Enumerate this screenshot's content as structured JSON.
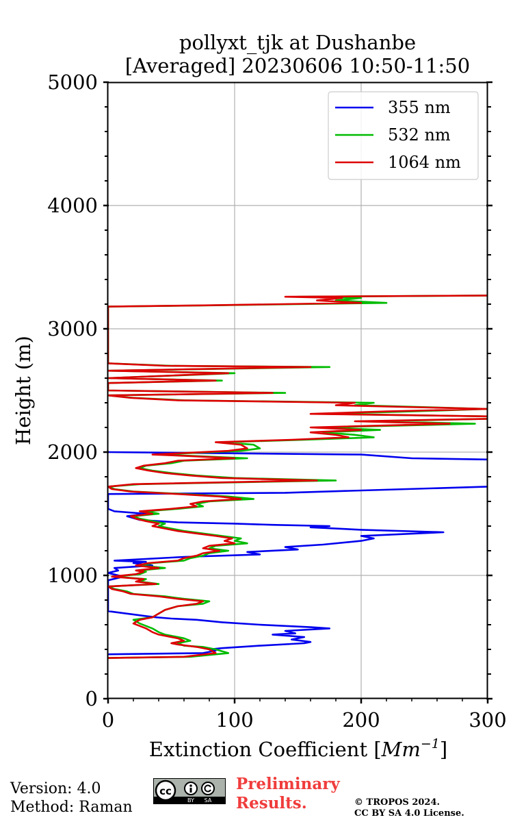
{
  "chart_data": {
    "type": "line",
    "title": "pollyxt_tjk at Dushanbe",
    "subtitle": "[Averaged] 20230606 10:50-11:50",
    "xlabel": "Extinction Coefficient [",
    "xlabel_unit": "Mm",
    "xlabel_exp": "−1",
    "xlabel_end": "]",
    "ylabel": "Height (m)",
    "xlim": [
      0,
      300
    ],
    "ylim": [
      0,
      5000
    ],
    "xticks": [
      0,
      100,
      200,
      300
    ],
    "yticks": [
      0,
      1000,
      2000,
      3000,
      4000,
      5000
    ],
    "grid": true,
    "legend_position": "top-right",
    "series": [
      {
        "name": "355 nm",
        "color": "#0000ee",
        "points": [
          [
            0,
            360
          ],
          [
            75,
            370
          ],
          [
            80,
            380
          ],
          [
            85,
            390
          ],
          [
            80,
            400
          ],
          [
            90,
            410
          ],
          [
            120,
            430
          ],
          [
            155,
            450
          ],
          [
            160,
            460
          ],
          [
            145,
            480
          ],
          [
            155,
            500
          ],
          [
            130,
            520
          ],
          [
            148,
            530
          ],
          [
            140,
            550
          ],
          [
            175,
            570
          ],
          [
            160,
            580
          ],
          [
            120,
            600
          ],
          [
            90,
            620
          ],
          [
            70,
            640
          ],
          [
            50,
            650
          ],
          [
            38,
            660
          ],
          [
            30,
            670
          ],
          [
            15,
            690
          ],
          [
            0,
            710
          ],
          [
            0,
            960
          ],
          [
            12,
            990
          ],
          [
            0,
            1020
          ],
          [
            8,
            1040
          ],
          [
            5,
            1060
          ],
          [
            35,
            1080
          ],
          [
            20,
            1100
          ],
          [
            30,
            1110
          ],
          [
            5,
            1120
          ],
          [
            60,
            1150
          ],
          [
            120,
            1170
          ],
          [
            110,
            1190
          ],
          [
            150,
            1210
          ],
          [
            140,
            1230
          ],
          [
            170,
            1250
          ],
          [
            200,
            1280
          ],
          [
            210,
            1300
          ],
          [
            200,
            1320
          ],
          [
            265,
            1350
          ],
          [
            200,
            1370
          ],
          [
            160,
            1390
          ],
          [
            175,
            1400
          ],
          [
            130,
            1410
          ],
          [
            100,
            1420
          ],
          [
            55,
            1430
          ],
          [
            40,
            1440
          ],
          [
            25,
            1450
          ],
          [
            15,
            1480
          ],
          [
            30,
            1500
          ],
          [
            5,
            1520
          ],
          [
            0,
            1540
          ],
          [
            0,
            1660
          ],
          [
            140,
            1670
          ],
          [
            300,
            1720
          ],
          [
            300,
            1940
          ],
          [
            240,
            1950
          ],
          [
            200,
            1980
          ],
          [
            0,
            2000
          ]
        ]
      },
      {
        "name": "532 nm",
        "color": "#00bb00",
        "points": [
          [
            0,
            330
          ],
          [
            65,
            340
          ],
          [
            95,
            370
          ],
          [
            85,
            400
          ],
          [
            75,
            420
          ],
          [
            60,
            430
          ],
          [
            55,
            450
          ],
          [
            65,
            470
          ],
          [
            60,
            490
          ],
          [
            45,
            520
          ],
          [
            40,
            540
          ],
          [
            35,
            570
          ],
          [
            30,
            590
          ],
          [
            25,
            610
          ],
          [
            20,
            640
          ],
          [
            35,
            660
          ],
          [
            40,
            690
          ],
          [
            45,
            720
          ],
          [
            55,
            750
          ],
          [
            75,
            770
          ],
          [
            80,
            790
          ],
          [
            60,
            810
          ],
          [
            45,
            830
          ],
          [
            20,
            850
          ],
          [
            15,
            870
          ],
          [
            5,
            890
          ],
          [
            0,
            910
          ],
          [
            40,
            930
          ],
          [
            25,
            950
          ],
          [
            30,
            970
          ],
          [
            5,
            990
          ],
          [
            25,
            1010
          ],
          [
            30,
            1030
          ],
          [
            25,
            1040
          ],
          [
            45,
            1060
          ],
          [
            25,
            1080
          ],
          [
            35,
            1100
          ],
          [
            60,
            1120
          ],
          [
            65,
            1140
          ],
          [
            75,
            1160
          ],
          [
            80,
            1180
          ],
          [
            95,
            1200
          ],
          [
            80,
            1220
          ],
          [
            85,
            1240
          ],
          [
            110,
            1260
          ],
          [
            100,
            1280
          ],
          [
            105,
            1300
          ],
          [
            90,
            1320
          ],
          [
            75,
            1340
          ],
          [
            60,
            1360
          ],
          [
            50,
            1380
          ],
          [
            40,
            1400
          ],
          [
            45,
            1420
          ],
          [
            35,
            1440
          ],
          [
            25,
            1460
          ],
          [
            20,
            1480
          ],
          [
            40,
            1500
          ],
          [
            30,
            1520
          ],
          [
            55,
            1540
          ],
          [
            75,
            1560
          ],
          [
            70,
            1580
          ],
          [
            80,
            1600
          ],
          [
            115,
            1620
          ],
          [
            95,
            1640
          ],
          [
            60,
            1660
          ],
          [
            20,
            1680
          ],
          [
            5,
            1700
          ],
          [
            0,
            1720
          ],
          [
            25,
            1740
          ],
          [
            180,
            1770
          ],
          [
            100,
            1790
          ],
          [
            70,
            1810
          ],
          [
            50,
            1830
          ],
          [
            35,
            1850
          ],
          [
            25,
            1870
          ],
          [
            30,
            1890
          ],
          [
            50,
            1910
          ],
          [
            60,
            1930
          ],
          [
            110,
            1950
          ],
          [
            65,
            1970
          ],
          [
            40,
            1980
          ],
          [
            60,
            1990
          ],
          [
            105,
            2010
          ],
          [
            120,
            2030
          ],
          [
            115,
            2060
          ],
          [
            90,
            2080
          ],
          [
            155,
            2100
          ],
          [
            210,
            2120
          ],
          [
            195,
            2140
          ],
          [
            170,
            2160
          ],
          [
            215,
            2180
          ],
          [
            170,
            2200
          ],
          [
            290,
            2230
          ],
          [
            210,
            2250
          ],
          [
            300,
            2270
          ],
          [
            300,
            2290
          ],
          [
            170,
            2310
          ],
          [
            240,
            2330
          ],
          [
            300,
            2350
          ],
          [
            195,
            2380
          ],
          [
            210,
            2400
          ],
          [
            60,
            2420
          ],
          [
            20,
            2440
          ],
          [
            0,
            2460
          ],
          [
            140,
            2480
          ],
          [
            0,
            2500
          ],
          [
            0,
            2560
          ],
          [
            90,
            2580
          ],
          [
            0,
            2600
          ],
          [
            100,
            2640
          ],
          [
            0,
            2660
          ],
          [
            175,
            2690
          ],
          [
            50,
            2700
          ],
          [
            0,
            2720
          ],
          [
            0,
            3180
          ],
          [
            80,
            3190
          ],
          [
            220,
            3210
          ],
          [
            180,
            3230
          ],
          [
            200,
            3250
          ],
          [
            150,
            3260
          ],
          [
            300,
            3270
          ]
        ]
      },
      {
        "name": "1064 nm",
        "color": "#dd0000",
        "points": [
          [
            0,
            330
          ],
          [
            60,
            340
          ],
          [
            85,
            370
          ],
          [
            80,
            400
          ],
          [
            70,
            420
          ],
          [
            55,
            440
          ],
          [
            50,
            450
          ],
          [
            60,
            470
          ],
          [
            55,
            490
          ],
          [
            40,
            520
          ],
          [
            35,
            540
          ],
          [
            30,
            570
          ],
          [
            25,
            590
          ],
          [
            20,
            610
          ],
          [
            25,
            640
          ],
          [
            35,
            660
          ],
          [
            40,
            690
          ],
          [
            45,
            720
          ],
          [
            55,
            750
          ],
          [
            70,
            770
          ],
          [
            75,
            790
          ],
          [
            55,
            810
          ],
          [
            40,
            830
          ],
          [
            18,
            850
          ],
          [
            12,
            870
          ],
          [
            3,
            890
          ],
          [
            0,
            910
          ],
          [
            38,
            930
          ],
          [
            22,
            950
          ],
          [
            28,
            970
          ],
          [
            3,
            990
          ],
          [
            22,
            1010
          ],
          [
            28,
            1030
          ],
          [
            22,
            1040
          ],
          [
            40,
            1060
          ],
          [
            22,
            1080
          ],
          [
            32,
            1100
          ],
          [
            55,
            1120
          ],
          [
            60,
            1140
          ],
          [
            70,
            1160
          ],
          [
            75,
            1180
          ],
          [
            88,
            1200
          ],
          [
            75,
            1220
          ],
          [
            80,
            1240
          ],
          [
            100,
            1260
          ],
          [
            92,
            1280
          ],
          [
            98,
            1300
          ],
          [
            85,
            1320
          ],
          [
            70,
            1340
          ],
          [
            55,
            1360
          ],
          [
            45,
            1380
          ],
          [
            35,
            1400
          ],
          [
            40,
            1420
          ],
          [
            30,
            1440
          ],
          [
            22,
            1460
          ],
          [
            18,
            1480
          ],
          [
            35,
            1500
          ],
          [
            25,
            1520
          ],
          [
            50,
            1540
          ],
          [
            70,
            1560
          ],
          [
            65,
            1580
          ],
          [
            75,
            1600
          ],
          [
            105,
            1620
          ],
          [
            88,
            1640
          ],
          [
            55,
            1660
          ],
          [
            18,
            1680
          ],
          [
            3,
            1700
          ],
          [
            0,
            1720
          ],
          [
            20,
            1740
          ],
          [
            165,
            1770
          ],
          [
            90,
            1790
          ],
          [
            65,
            1810
          ],
          [
            45,
            1830
          ],
          [
            32,
            1850
          ],
          [
            22,
            1870
          ],
          [
            28,
            1890
          ],
          [
            45,
            1910
          ],
          [
            55,
            1930
          ],
          [
            100,
            1950
          ],
          [
            60,
            1970
          ],
          [
            35,
            1980
          ],
          [
            55,
            1990
          ],
          [
            95,
            2010
          ],
          [
            110,
            2030
          ],
          [
            105,
            2060
          ],
          [
            85,
            2080
          ],
          [
            145,
            2100
          ],
          [
            190,
            2120
          ],
          [
            180,
            2140
          ],
          [
            160,
            2160
          ],
          [
            200,
            2180
          ],
          [
            160,
            2200
          ],
          [
            270,
            2230
          ],
          [
            195,
            2250
          ],
          [
            300,
            2270
          ],
          [
            300,
            2290
          ],
          [
            160,
            2310
          ],
          [
            220,
            2330
          ],
          [
            300,
            2350
          ],
          [
            180,
            2380
          ],
          [
            195,
            2400
          ],
          [
            55,
            2420
          ],
          [
            18,
            2440
          ],
          [
            0,
            2460
          ],
          [
            130,
            2480
          ],
          [
            0,
            2500
          ],
          [
            0,
            2560
          ],
          [
            85,
            2580
          ],
          [
            0,
            2600
          ],
          [
            95,
            2640
          ],
          [
            0,
            2660
          ],
          [
            160,
            2690
          ],
          [
            45,
            2700
          ],
          [
            0,
            2720
          ],
          [
            0,
            3180
          ],
          [
            75,
            3190
          ],
          [
            200,
            3210
          ],
          [
            165,
            3230
          ],
          [
            185,
            3250
          ],
          [
            140,
            3260
          ],
          [
            300,
            3270
          ]
        ]
      }
    ]
  },
  "footer": {
    "version": "Version: 4.0",
    "method": "Method: Raman",
    "cc_text": "cc",
    "cc_by": "BY",
    "cc_sa": "SA",
    "preliminary_line1": "Preliminary",
    "preliminary_line2": "Results.",
    "copyright_line1": "© TROPOS 2024.",
    "copyright_line2": "CC BY SA 4.0 License."
  }
}
